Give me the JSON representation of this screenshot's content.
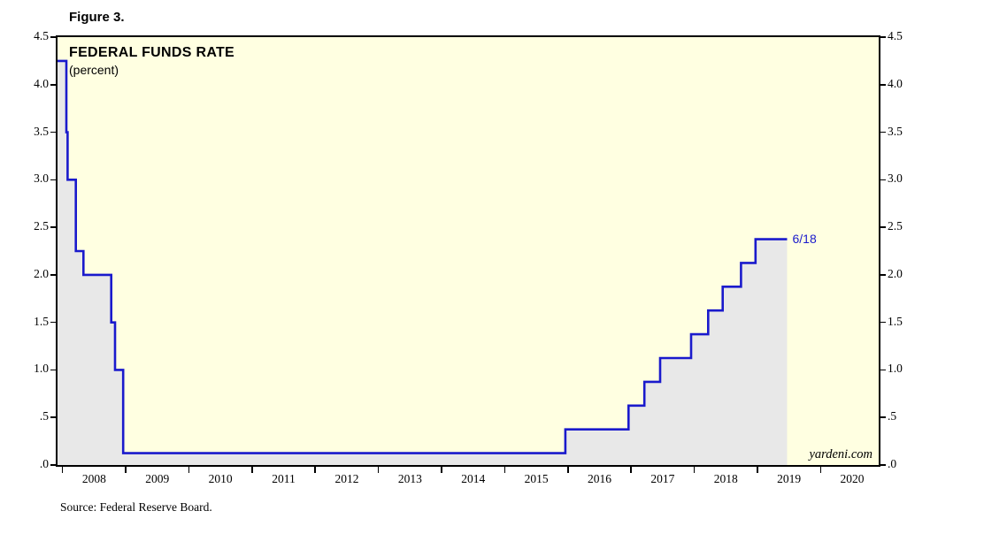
{
  "figure_label": "Figure 3.",
  "header": {
    "title": "FEDERAL FUNDS RATE",
    "subtitle": "(percent)"
  },
  "annotations": {
    "end_label": "6/18",
    "watermark": "yardeni.com"
  },
  "source": "Source: Federal Reserve Board.",
  "colors": {
    "line": "#1a1acc",
    "end_label": "#1a1acc",
    "fill": "#e8e8e8",
    "plot_bg": "#ffffe1",
    "border": "#000000"
  },
  "chart_data": {
    "type": "line",
    "step": true,
    "title": "FEDERAL FUNDS RATE",
    "ylabel": "percent",
    "grid": false,
    "legend": "none",
    "xlim": [
      2007.92,
      2020.92
    ],
    "ylim": [
      0,
      4.5
    ],
    "x_ticks": [
      {
        "year": 2008,
        "label": "2008"
      },
      {
        "year": 2009,
        "label": "2009"
      },
      {
        "year": 2010,
        "label": "2010"
      },
      {
        "year": 2011,
        "label": "2011"
      },
      {
        "year": 2012,
        "label": "2012"
      },
      {
        "year": 2013,
        "label": "2013"
      },
      {
        "year": 2014,
        "label": "2014"
      },
      {
        "year": 2015,
        "label": "2015"
      },
      {
        "year": 2016,
        "label": "2016"
      },
      {
        "year": 2017,
        "label": "2017"
      },
      {
        "year": 2018,
        "label": "2018"
      },
      {
        "year": 2019,
        "label": "2019"
      },
      {
        "year": 2020,
        "label": "2020"
      }
    ],
    "y_ticks": [
      {
        "value": 4.5,
        "label": "4.5"
      },
      {
        "value": 4.0,
        "label": "4.0"
      },
      {
        "value": 3.5,
        "label": "3.5"
      },
      {
        "value": 3.0,
        "label": "3.0"
      },
      {
        "value": 2.5,
        "label": "2.5"
      },
      {
        "value": 2.0,
        "label": "2.0"
      },
      {
        "value": 1.5,
        "label": "1.5"
      },
      {
        "value": 1.0,
        "label": "1.0"
      },
      {
        "value": 0.5,
        "label": ".5"
      },
      {
        "value": 0.0,
        "label": ".0"
      }
    ],
    "series": [
      {
        "name": "federal-funds-rate",
        "points": [
          [
            2007.92,
            4.25
          ],
          [
            2008.06,
            3.5
          ],
          [
            2008.08,
            3.0
          ],
          [
            2008.21,
            2.25
          ],
          [
            2008.33,
            2.0
          ],
          [
            2008.77,
            1.5
          ],
          [
            2008.83,
            1.0
          ],
          [
            2008.96,
            0.125
          ],
          [
            2015.96,
            0.375
          ],
          [
            2016.96,
            0.625
          ],
          [
            2017.21,
            0.875
          ],
          [
            2017.46,
            1.125
          ],
          [
            2017.95,
            1.375
          ],
          [
            2018.22,
            1.625
          ],
          [
            2018.45,
            1.875
          ],
          [
            2018.74,
            2.125
          ],
          [
            2018.97,
            2.375
          ],
          [
            2019.47,
            2.375
          ]
        ]
      }
    ],
    "end_point": {
      "x": 2019.47,
      "value": 2.375,
      "label": "6/18"
    }
  }
}
